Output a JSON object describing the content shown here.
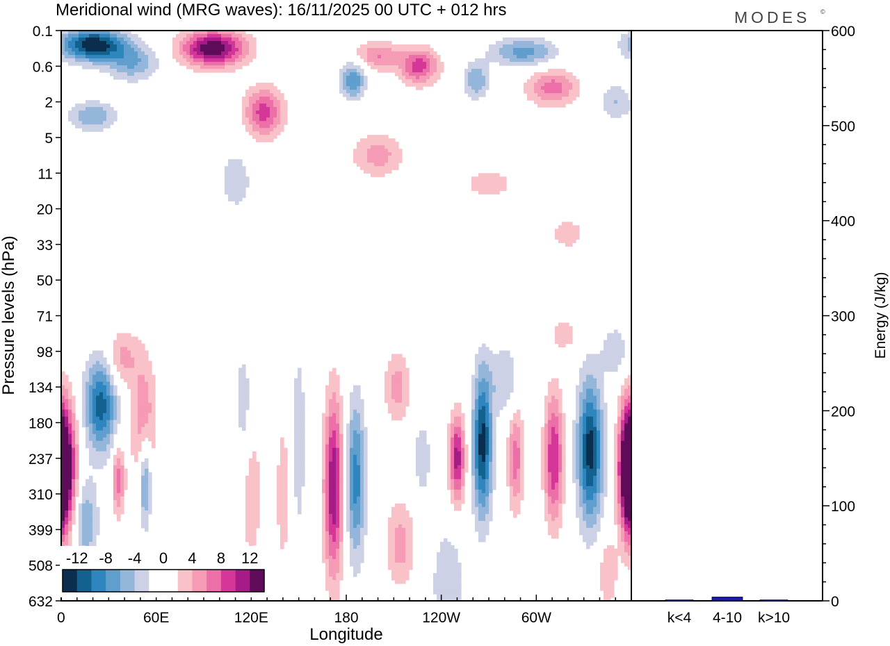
{
  "title": "Meridional wind (MRG waves):  16/11/2025  00 UTC  + 012 hrs",
  "brand": "MODES",
  "brand_mark": "©",
  "chart_data": [
    {
      "type": "heatmap",
      "title": "Meridional wind (MRG waves):  16/11/2025  00 UTC  + 012 hrs",
      "xlabel": "Longitude",
      "ylabel": "Pressure levels (hPa)",
      "x_range_deg": [
        0,
        360
      ],
      "x_ticks": [
        {
          "deg": 0,
          "label": "0"
        },
        {
          "deg": 60,
          "label": "60E"
        },
        {
          "deg": 120,
          "label": "120E"
        },
        {
          "deg": 180,
          "label": "180"
        },
        {
          "deg": 240,
          "label": "120W"
        },
        {
          "deg": 300,
          "label": "60W"
        }
      ],
      "y_levels": [
        "0.1",
        "0.6",
        "2",
        "5",
        "11",
        "20",
        "33",
        "50",
        "71",
        "98",
        "134",
        "180",
        "237",
        "310",
        "399",
        "508",
        "632"
      ],
      "colorbar": {
        "tick_labels": [
          "-12",
          "-8",
          "-4",
          "0",
          "4",
          "8",
          "12"
        ],
        "bins": [
          {
            "lo": -14,
            "hi": -12,
            "color": "#0b2e4f"
          },
          {
            "lo": -12,
            "hi": -10,
            "color": "#12618e"
          },
          {
            "lo": -10,
            "hi": -8,
            "color": "#2f86be"
          },
          {
            "lo": -8,
            "hi": -6,
            "color": "#5f9ecd"
          },
          {
            "lo": -6,
            "hi": -4,
            "color": "#93b6da"
          },
          {
            "lo": -4,
            "hi": -2,
            "color": "#cdd1e6"
          },
          {
            "lo": -2,
            "hi": 0,
            "color": "#ffffff"
          },
          {
            "lo": 0,
            "hi": 2,
            "color": "#ffffff"
          },
          {
            "lo": 2,
            "hi": 4,
            "color": "#f9c2c8"
          },
          {
            "lo": 4,
            "hi": 6,
            "color": "#f59bb6"
          },
          {
            "lo": 6,
            "hi": 8,
            "color": "#ec6fa8"
          },
          {
            "lo": 8,
            "hi": 10,
            "color": "#d43798"
          },
          {
            "lo": 10,
            "hi": 12,
            "color": "#a51c86"
          },
          {
            "lo": 12,
            "hi": 14,
            "color": "#5e0c5a"
          }
        ]
      },
      "blobs": [
        {
          "lon": 20,
          "lev": 0.4,
          "dlon": 20,
          "dlev": 0.45,
          "amp": -14
        },
        {
          "lon": 45,
          "lev": 0.9,
          "dlon": 16,
          "dlev": 0.5,
          "amp": -6
        },
        {
          "lon": 20,
          "lev": 2.4,
          "dlon": 14,
          "dlev": 0.4,
          "amp": -6
        },
        {
          "lon": 96,
          "lev": 0.5,
          "dlon": 20,
          "dlev": 0.5,
          "amp": 14
        },
        {
          "lon": 128,
          "lev": 2.3,
          "dlon": 12,
          "dlev": 0.7,
          "amp": 9
        },
        {
          "lon": 184,
          "lev": 1.4,
          "dlon": 8,
          "dlev": 0.5,
          "amp": -8
        },
        {
          "lon": 200,
          "lev": 0.7,
          "dlon": 14,
          "dlev": 0.4,
          "amp": 6
        },
        {
          "lon": 226,
          "lev": 1.0,
          "dlon": 12,
          "dlev": 0.5,
          "amp": 9
        },
        {
          "lon": 262,
          "lev": 1.4,
          "dlon": 8,
          "dlev": 0.5,
          "amp": -6
        },
        {
          "lon": 292,
          "lev": 0.6,
          "dlon": 20,
          "dlev": 0.4,
          "amp": -7
        },
        {
          "lon": 310,
          "lev": 1.6,
          "dlon": 16,
          "dlev": 0.5,
          "amp": 7
        },
        {
          "lon": 350,
          "lev": 2.0,
          "dlon": 10,
          "dlev": 0.5,
          "amp": -4
        },
        {
          "lon": 200,
          "lev": 3.5,
          "dlon": 16,
          "dlev": 0.6,
          "amp": 5
        },
        {
          "lon": 270,
          "lev": 4.3,
          "dlon": 18,
          "dlev": 0.5,
          "amp": 3
        },
        {
          "lon": 320,
          "lev": 5.7,
          "dlon": 12,
          "dlev": 0.5,
          "amp": 3
        },
        {
          "lon": 110,
          "lev": 4.2,
          "dlon": 12,
          "dlev": 1.0,
          "amp": -3
        },
        {
          "lon": 2,
          "lev": 12.3,
          "dlon": 8,
          "dlev": 1.8,
          "amp": 14
        },
        {
          "lon": 358,
          "lev": 12.3,
          "dlon": 6,
          "dlev": 1.8,
          "amp": 12
        },
        {
          "lon": 25,
          "lev": 10.5,
          "dlon": 10,
          "dlev": 1.3,
          "amp": -11
        },
        {
          "lon": 15,
          "lev": 13.8,
          "dlon": 8,
          "dlev": 1.2,
          "amp": -6
        },
        {
          "lon": 52,
          "lev": 11.0,
          "dlon": 8,
          "dlev": 1.8,
          "amp": 6
        },
        {
          "lon": 38,
          "lev": 9.2,
          "dlon": 10,
          "dlev": 0.8,
          "amp": 5
        },
        {
          "lon": 36,
          "lev": 12.6,
          "dlon": 4,
          "dlev": 1.0,
          "amp": 7
        },
        {
          "lon": 53,
          "lev": 12.6,
          "dlon": 4,
          "dlev": 1.3,
          "amp": -8
        },
        {
          "lon": 120,
          "lev": 13.0,
          "dlon": 8,
          "dlev": 2.5,
          "amp": 3
        },
        {
          "lon": 115,
          "lev": 10.5,
          "dlon": 5,
          "dlev": 1.5,
          "amp": -4
        },
        {
          "lon": 172,
          "lev": 12.8,
          "dlon": 6,
          "dlev": 2.5,
          "amp": 12
        },
        {
          "lon": 186,
          "lev": 12.6,
          "dlon": 6,
          "dlev": 2.2,
          "amp": -9
        },
        {
          "lon": 212,
          "lev": 10.0,
          "dlon": 8,
          "dlev": 1.0,
          "amp": 5
        },
        {
          "lon": 214,
          "lev": 14.4,
          "dlon": 9,
          "dlev": 1.2,
          "amp": 5
        },
        {
          "lon": 250,
          "lev": 12.0,
          "dlon": 5,
          "dlev": 1.2,
          "amp": 11
        },
        {
          "lon": 266,
          "lev": 11.6,
          "dlon": 6,
          "dlev": 2.0,
          "amp": -13
        },
        {
          "lon": 228,
          "lev": 12.0,
          "dlon": 5,
          "dlev": 1.0,
          "amp": -4
        },
        {
          "lon": 244,
          "lev": 15.5,
          "dlon": 10,
          "dlev": 1.5,
          "amp": -4
        },
        {
          "lon": 287,
          "lev": 12.0,
          "dlon": 5,
          "dlev": 1.5,
          "amp": 7
        },
        {
          "lon": 311,
          "lev": 12.0,
          "dlon": 6,
          "dlev": 1.8,
          "amp": 10
        },
        {
          "lon": 334,
          "lev": 11.8,
          "dlon": 8,
          "dlev": 2.0,
          "amp": -13
        },
        {
          "lon": 280,
          "lev": 9.8,
          "dlon": 10,
          "dlev": 1.0,
          "amp": -4
        },
        {
          "lon": 318,
          "lev": 8.5,
          "dlon": 10,
          "dlev": 0.5,
          "amp": 3
        },
        {
          "lon": 150,
          "lev": 11.5,
          "dlon": 4,
          "dlev": 2.5,
          "amp": -4
        },
        {
          "lon": 140,
          "lev": 13.0,
          "dlon": 5,
          "dlev": 2.5,
          "amp": 3
        },
        {
          "lon": 345,
          "lev": 15.2,
          "dlon": 6,
          "dlev": 1.0,
          "amp": 4
        },
        {
          "lon": 350,
          "lev": 9.0,
          "dlon": 8,
          "dlev": 0.7,
          "amp": -4
        }
      ]
    },
    {
      "type": "bar",
      "categories": [
        "k<4",
        "4-10",
        "k>10"
      ],
      "values": [
        1,
        4,
        1
      ],
      "ylabel": "Energy (J/kg)",
      "ylim": [
        0,
        600
      ],
      "y_ticks": [
        0,
        100,
        200,
        300,
        400,
        500,
        600
      ],
      "bar_color": "#1a1aa6"
    }
  ]
}
